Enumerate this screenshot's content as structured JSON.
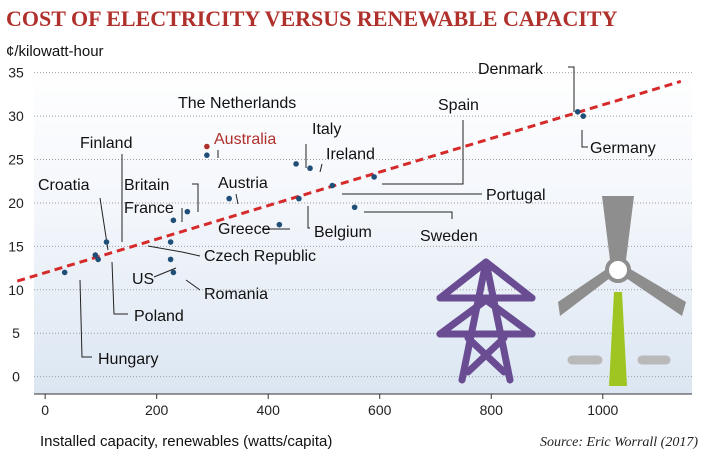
{
  "chart_data": {
    "type": "scatter",
    "title": "COST OF ELECTRICITY VERSUS RENEWABLE CAPACITY",
    "ylabel": "¢/kilowatt-hour",
    "xlabel": "Installed capacity, renewables (watts/capita)",
    "source": "Source: Eric Worrall (2017)",
    "xlim": [
      -20,
      1160
    ],
    "ylim": [
      -2,
      36
    ],
    "xticks": [
      0,
      200,
      400,
      600,
      800,
      1000
    ],
    "yticks": [
      0,
      5,
      10,
      15,
      20,
      25,
      30,
      35
    ],
    "grid": "horizontal",
    "trendline": {
      "x": [
        -50,
        1140
      ],
      "y": [
        11.0,
        34.0
      ],
      "color": "#d62a2a"
    },
    "point_color": "#1f4e79",
    "highlight_color": "#b0302b",
    "points": [
      {
        "name": "Denmark",
        "x": 955,
        "y": 30.5
      },
      {
        "name": "Germany",
        "x": 965,
        "y": 30.0
      },
      {
        "name": "Spain",
        "x": 590,
        "y": 23.0
      },
      {
        "name": "Portugal",
        "x": 515,
        "y": 22.0
      },
      {
        "name": "Sweden",
        "x": 555,
        "y": 19.5
      },
      {
        "name": "Belgium",
        "x": 455,
        "y": 20.5
      },
      {
        "name": "Italy",
        "x": 450,
        "y": 24.5
      },
      {
        "name": "Ireland",
        "x": 475,
        "y": 24.0
      },
      {
        "name": "The Netherlands",
        "x": 290,
        "y": 25.5
      },
      {
        "name": "Australia",
        "x": 290,
        "y": 26.5,
        "highlight": true
      },
      {
        "name": "Austria",
        "x": 330,
        "y": 20.5
      },
      {
        "name": "Greece",
        "x": 420,
        "y": 17.5
      },
      {
        "name": "Britain",
        "x": 255,
        "y": 19.0
      },
      {
        "name": "France",
        "x": 230,
        "y": 18.0
      },
      {
        "name": "Czech Republic",
        "x": 225,
        "y": 15.5
      },
      {
        "name": "US",
        "x": 225,
        "y": 13.5
      },
      {
        "name": "Romania",
        "x": 230,
        "y": 12.0
      },
      {
        "name": "Finland",
        "x": 110,
        "y": 15.5
      },
      {
        "name": "Croatia",
        "x": 90,
        "y": 14.0
      },
      {
        "name": "Poland",
        "x": 95,
        "y": 13.5
      },
      {
        "name": "Hungary",
        "x": 35,
        "y": 12.0
      }
    ]
  }
}
